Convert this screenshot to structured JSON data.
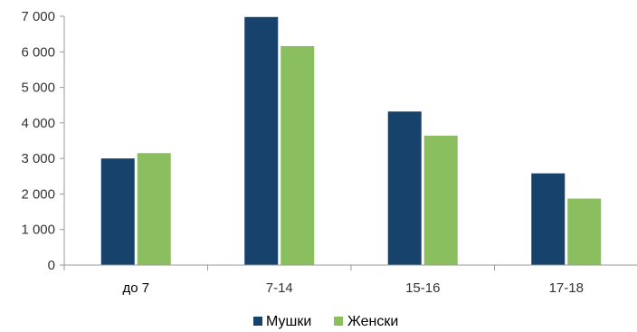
{
  "chart_data": {
    "type": "bar",
    "categories": [
      "до 7",
      "7-14",
      "15-16",
      "17-18"
    ],
    "series": [
      {
        "name": "Мушки",
        "values": [
          3000,
          6980,
          4320,
          2580
        ],
        "color": "#17426B"
      },
      {
        "name": "Женски",
        "values": [
          3150,
          6160,
          3640,
          1870
        ],
        "color": "#8BBE5E"
      }
    ],
    "y_ticks": [
      "0",
      "1 000",
      "2 000",
      "3 000",
      "4 000",
      "5 000",
      "6 000",
      "7 000"
    ],
    "ylim": [
      0,
      7000
    ],
    "grid": false,
    "legend": "bottom",
    "title": "",
    "xlabel": "",
    "ylabel": ""
  }
}
